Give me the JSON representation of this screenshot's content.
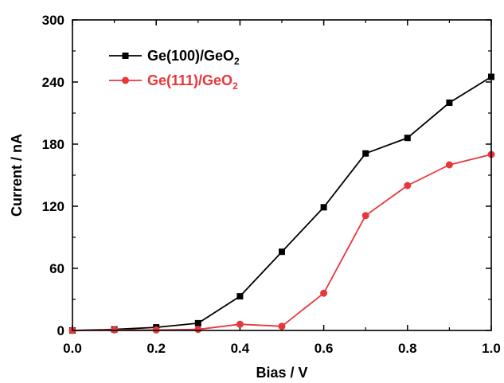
{
  "chart_data": {
    "type": "line",
    "xlabel": "Bias / V",
    "ylabel": "Current / nA",
    "xlim": [
      0.0,
      1.0
    ],
    "ylim": [
      0,
      300
    ],
    "x_ticks": [
      "0.0",
      "0.2",
      "0.4",
      "0.6",
      "0.8",
      "1.0"
    ],
    "y_ticks": [
      "0",
      "60",
      "120",
      "180",
      "240",
      "300"
    ],
    "grid": false,
    "legend_position": "top-left",
    "series": [
      {
        "name": "Ge(100)/GeO",
        "name_sub": "2",
        "color": "#000000",
        "marker": "square",
        "x": [
          0.0,
          0.1,
          0.2,
          0.3,
          0.4,
          0.5,
          0.6,
          0.7,
          0.8,
          0.9,
          1.0
        ],
        "y": [
          0,
          1,
          3,
          7,
          33,
          76,
          119,
          171,
          186,
          220,
          245
        ]
      },
      {
        "name": "Ge(111)/GeO",
        "name_sub": "2",
        "color": "#e8373a",
        "marker": "circle",
        "x": [
          0.0,
          0.1,
          0.2,
          0.3,
          0.4,
          0.5,
          0.6,
          0.7,
          0.8,
          0.9,
          1.0
        ],
        "y": [
          0,
          0.5,
          0.5,
          1,
          6,
          4,
          36,
          111,
          140,
          160,
          170
        ]
      }
    ]
  }
}
